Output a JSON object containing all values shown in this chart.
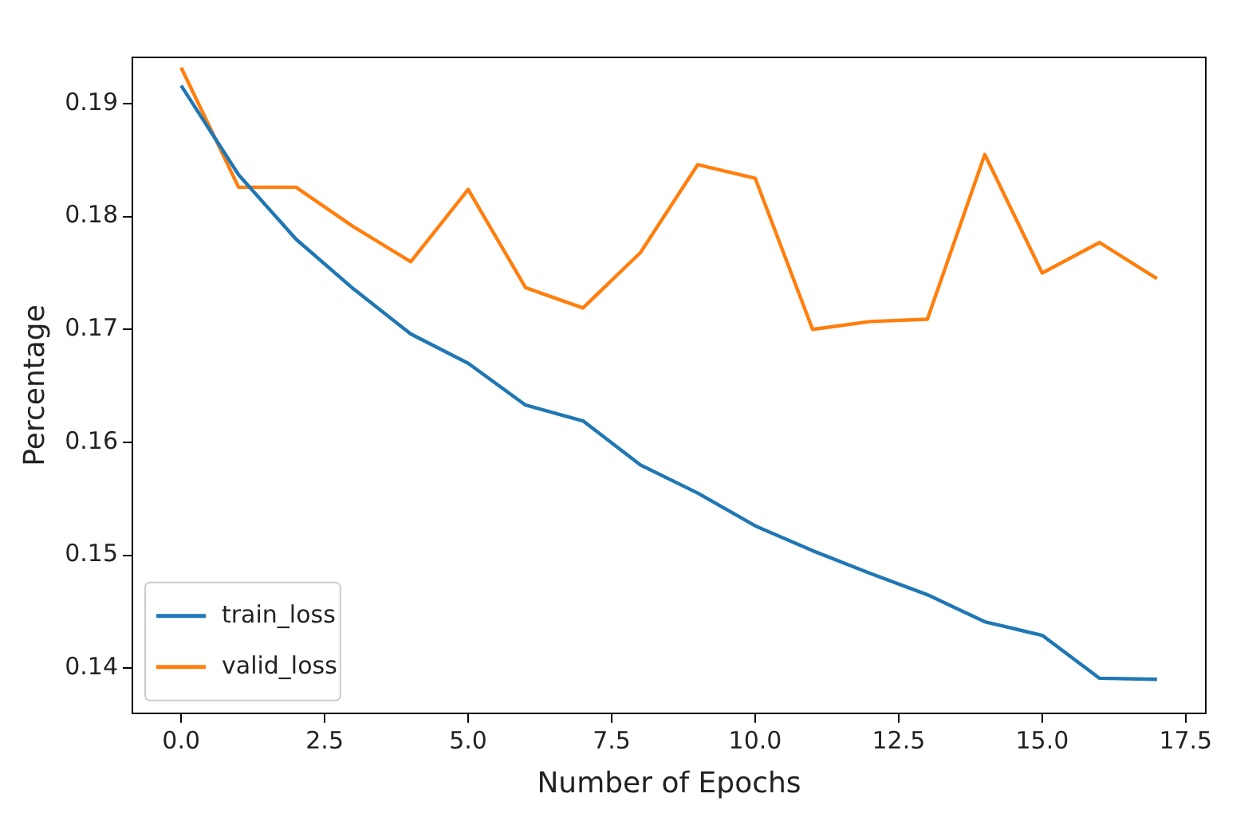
{
  "chart_data": {
    "type": "line",
    "xlabel": "Number of Epochs",
    "ylabel": "Percentage",
    "x": [
      0,
      1,
      2,
      3,
      4,
      5,
      6,
      7,
      8,
      9,
      10,
      11,
      12,
      13,
      14,
      15,
      16,
      17
    ],
    "series": [
      {
        "name": "train_loss",
        "color": "#1f77b4",
        "values": [
          0.1916,
          0.1837,
          0.178,
          0.1736,
          0.1696,
          0.167,
          0.1633,
          0.1619,
          0.158,
          0.1555,
          0.1526,
          0.1504,
          0.1484,
          0.1465,
          0.1441,
          0.1429,
          0.1391,
          0.139
        ]
      },
      {
        "name": "valid_loss",
        "color": "#ff7f0e",
        "values": [
          0.1932,
          0.1826,
          0.1826,
          0.1791,
          0.176,
          0.1824,
          0.1737,
          0.1719,
          0.1768,
          0.1846,
          0.1834,
          0.17,
          0.1707,
          0.1709,
          0.1855,
          0.175,
          0.1777,
          0.1745
        ]
      }
    ],
    "xlim": [
      -0.85,
      17.85
    ],
    "ylim": [
      0.136,
      0.1941
    ],
    "xticks": [
      {
        "value": 0,
        "label": "0.0"
      },
      {
        "value": 2.5,
        "label": "2.5"
      },
      {
        "value": 5,
        "label": "5.0"
      },
      {
        "value": 7.5,
        "label": "7.5"
      },
      {
        "value": 10,
        "label": "10.0"
      },
      {
        "value": 12.5,
        "label": "12.5"
      },
      {
        "value": 15,
        "label": "15.0"
      },
      {
        "value": 17.5,
        "label": "17.5"
      }
    ],
    "yticks": [
      0.14,
      0.15,
      0.16,
      0.17,
      0.18,
      0.19
    ],
    "legend": "bottom left",
    "grid": false,
    "marker": "none",
    "line_style": "solid"
  }
}
